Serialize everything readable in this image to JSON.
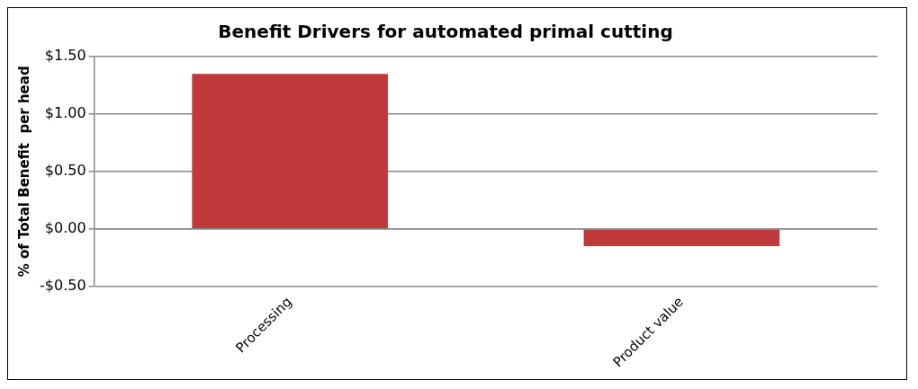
{
  "chart_data": {
    "type": "bar",
    "title": "Benefit Drivers for automated primal cutting",
    "ylabel": "% of Total Benefit  per head",
    "categories": [
      "Processing",
      "Product value"
    ],
    "values": [
      1.35,
      -0.15
    ],
    "color": "#c0393b",
    "ylim": [
      -0.5,
      1.5
    ],
    "yticks": [
      {
        "value": -0.5,
        "label": "-$0.50"
      },
      {
        "value": 0,
        "label": "$0.00"
      },
      {
        "value": 0.5,
        "label": "$0.50"
      },
      {
        "value": 1,
        "label": "$1.00"
      },
      {
        "value": 1.5,
        "label": "$1.50"
      }
    ],
    "grid": "y",
    "legend": false
  }
}
